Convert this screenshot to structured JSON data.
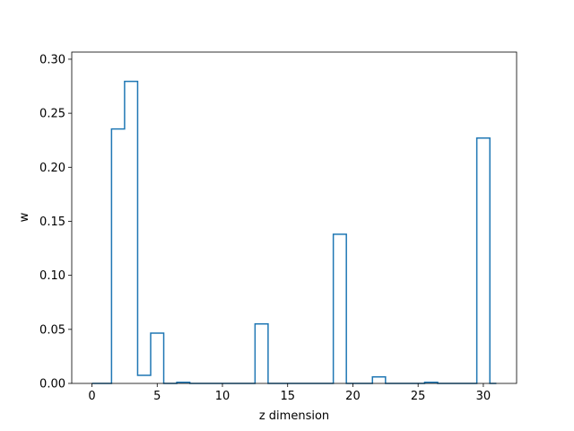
{
  "chart_data": {
    "type": "line",
    "subtype": "step",
    "xlabel": "z dimension",
    "ylabel": "w",
    "xlim": [
      -1.55,
      32.55
    ],
    "ylim": [
      0,
      0.3066
    ],
    "xticks": [
      0,
      5,
      10,
      15,
      20,
      25,
      30
    ],
    "xtick_labels": [
      "0",
      "5",
      "10",
      "15",
      "20",
      "25",
      "30"
    ],
    "yticks": [
      0,
      0.05,
      0.1,
      0.15,
      0.2,
      0.25,
      0.3
    ],
    "ytick_labels": [
      "0.00",
      "0.05",
      "0.10",
      "0.15",
      "0.20",
      "0.25",
      "0.30"
    ],
    "grid": false,
    "color": "#1f77b4",
    "series": [
      {
        "x": [
          0,
          1,
          2,
          3,
          4,
          5,
          6,
          7,
          8,
          9,
          10,
          11,
          12,
          13,
          14,
          15,
          16,
          17,
          18,
          19,
          20,
          21,
          22,
          23,
          24,
          25,
          26,
          27,
          28,
          29,
          30,
          31
        ],
        "values": [
          0,
          0,
          0.2355,
          0.2795,
          0.0075,
          0.0465,
          0,
          0.001,
          0,
          0,
          0,
          0,
          0,
          0.055,
          0,
          0,
          0,
          0,
          0,
          0.138,
          0,
          0,
          0.006,
          0,
          0,
          0,
          0.001,
          0,
          0,
          0,
          0.227,
          0
        ]
      }
    ]
  }
}
